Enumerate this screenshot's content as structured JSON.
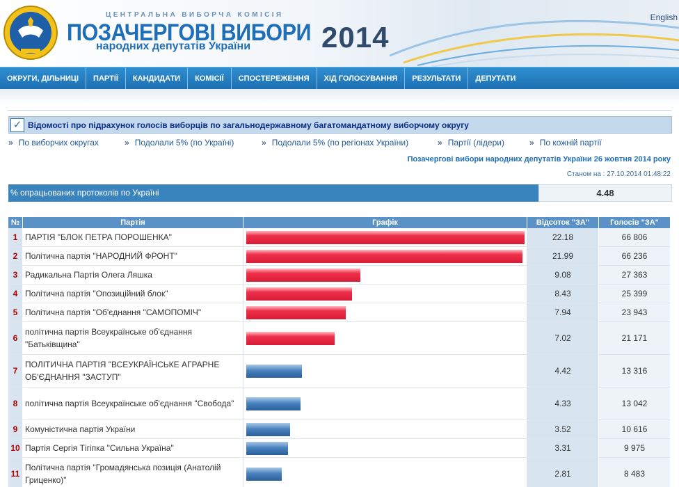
{
  "header": {
    "org": "ЦЕНТРАЛЬНА ВИБОРЧА КОМІСІЯ",
    "title": "ПОЗАЧЕРГОВІ ВИБОРИ",
    "year": "2014",
    "subtitle": "народних депутатів України",
    "language_link": "English"
  },
  "nav": {
    "items": [
      "ОКРУГИ, ДІЛЬНИЦІ",
      "ПАРТІЇ",
      "КАНДИДАТИ",
      "КОМІСІЇ",
      "СПОСТЕРЕЖЕННЯ",
      "ХІД ГОЛОСУВАННЯ",
      "РЕЗУЛЬТАТИ",
      "ДЕПУТАТИ"
    ]
  },
  "section": {
    "title": "Відомості про підрахунок голосів виборців по загальнодержавному багатомандатному виборчому округу"
  },
  "links": [
    "По виборчих округах",
    "Подолали 5% (по Україні)",
    "Подолали 5% (по регіонах України)",
    "Партії (лідери)",
    "По кожній партії"
  ],
  "election_title": "Позачергові вибори народних депутатів України 26 жовтня 2014 року",
  "status_time": "Станом на : 27.10.2014 01:48:22",
  "protocols": {
    "label": "% опрацьованих протоколів по Україні",
    "value": "4.48"
  },
  "table": {
    "headers": {
      "num": "№",
      "party": "Партія",
      "chart": "Графік",
      "percent": "Відсоток \"ЗА\"",
      "votes": "Голосів \"ЗА\""
    },
    "bar_colors": {
      "passed": "#e8283f",
      "not_passed": "#3f78b5"
    },
    "rows": [
      {
        "num": "1",
        "party": "ПАРТІЯ \"БЛОК ПЕТРА ПОРОШЕНКА\"",
        "percent": "22.18",
        "votes": "66 806",
        "pct_value": 22.18,
        "color": "red"
      },
      {
        "num": "2",
        "party": "Політична партія \"НАРОДНИЙ ФРОНТ\"",
        "percent": "21.99",
        "votes": "66 236",
        "pct_value": 21.99,
        "color": "red"
      },
      {
        "num": "3",
        "party": "Радикальна Партія Олега Ляшка",
        "percent": "9.08",
        "votes": "27 363",
        "pct_value": 9.08,
        "color": "red"
      },
      {
        "num": "4",
        "party": "Політична партія \"Опозиційний блок\"",
        "percent": "8.43",
        "votes": "25 399",
        "pct_value": 8.43,
        "color": "red"
      },
      {
        "num": "5",
        "party": "Політична партія \"Об'єднання \"САМОПОМІЧ\"",
        "percent": "7.94",
        "votes": "23 943",
        "pct_value": 7.94,
        "color": "red"
      },
      {
        "num": "6",
        "party": "політична партія Всеукраїнське об'єднання \"Батьківщина\"",
        "percent": "7.02",
        "votes": "21 171",
        "pct_value": 7.02,
        "color": "red"
      },
      {
        "num": "7",
        "party": "ПОЛІТИЧНА ПАРТІЯ \"ВСЕУКРАЇНСЬКЕ АГРАРНЕ ОБ'ЄДНАННЯ \"ЗАСТУП\"",
        "percent": "4.42",
        "votes": "13 316",
        "pct_value": 4.42,
        "color": "blue"
      },
      {
        "num": "8",
        "party": "політична партія Всеукраїнське об'єднання \"Свобода\"",
        "percent": "4.33",
        "votes": "13 042",
        "pct_value": 4.33,
        "color": "blue"
      },
      {
        "num": "9",
        "party": "Комуністична партія України",
        "percent": "3.52",
        "votes": "10 616",
        "pct_value": 3.52,
        "color": "blue"
      },
      {
        "num": "10",
        "party": "Партія Сергія Тігіпка \"Сильна Україна\"",
        "percent": "3.31",
        "votes": "9 975",
        "pct_value": 3.31,
        "color": "blue"
      },
      {
        "num": "11",
        "party": "Політична партія \"Громадянська позиція (Анатолій Гриценко)\"",
        "percent": "2.81",
        "votes": "8 483",
        "pct_value": 2.81,
        "color": "blue"
      }
    ]
  }
}
